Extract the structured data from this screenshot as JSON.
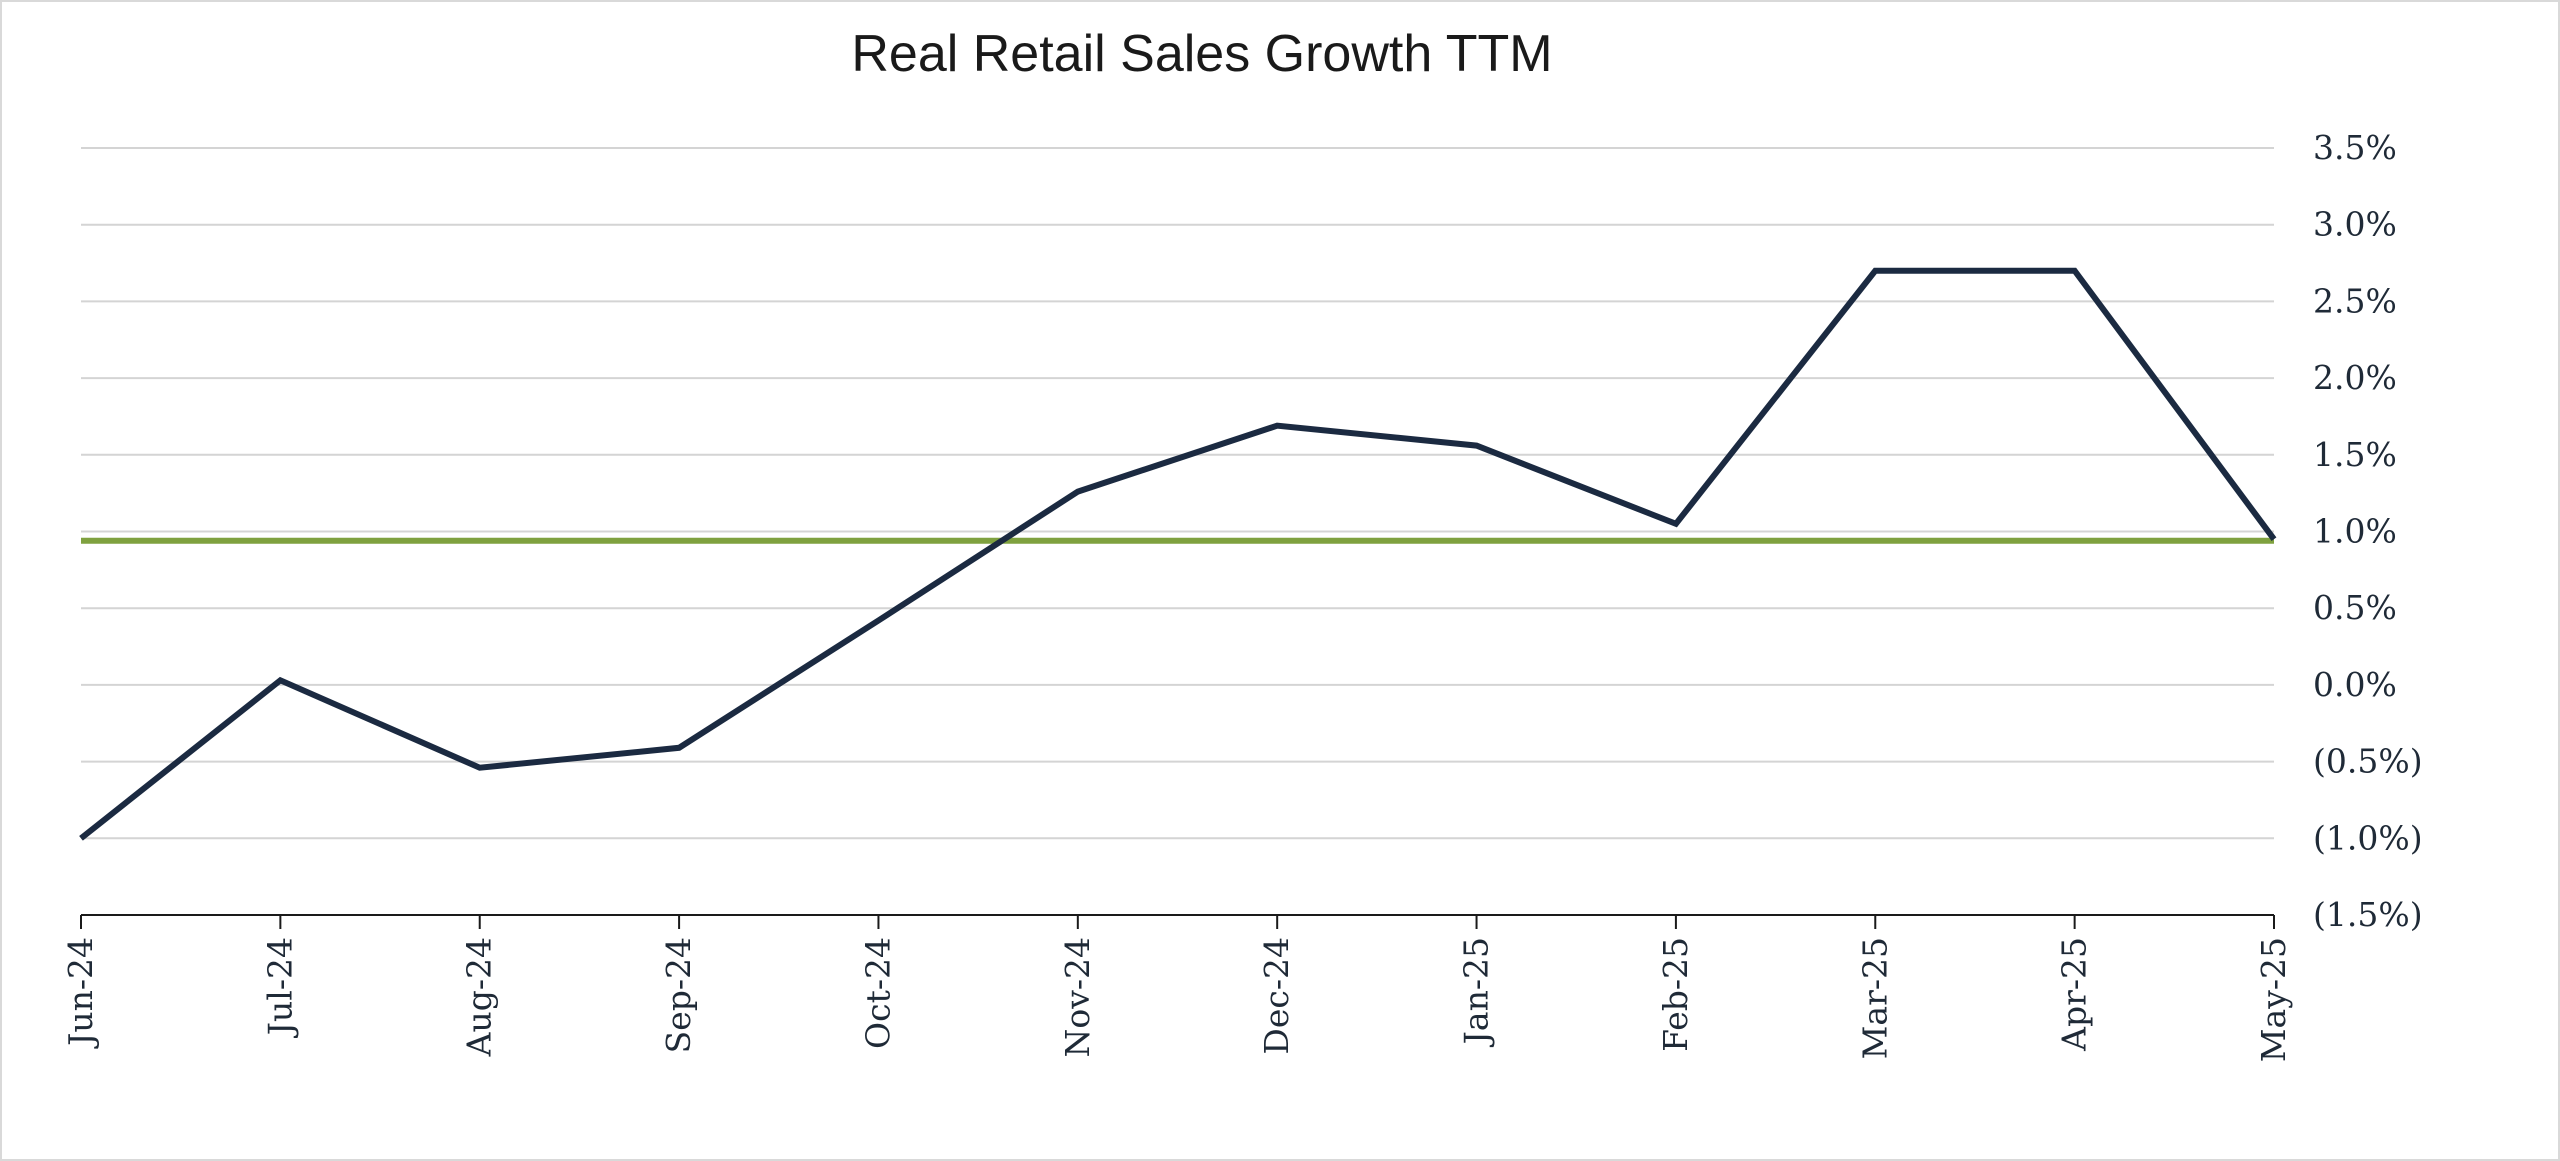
{
  "chart_data": {
    "type": "line",
    "title": "Real Retail Sales Growth TTM",
    "xlabel": "",
    "ylabel": "",
    "categories": [
      "Jun-24",
      "Jul-24",
      "Aug-24",
      "Sep-24",
      "Oct-24",
      "Nov-24",
      "Dec-24",
      "Jan-25",
      "Feb-25",
      "Mar-25",
      "Apr-25",
      "May-25"
    ],
    "series": [
      {
        "values": [
          -1.0,
          0.03,
          -0.54,
          -0.41,
          0.42,
          1.26,
          1.69,
          1.56,
          1.05,
          2.7,
          2.7,
          0.95
        ],
        "color": "#1b2a41"
      }
    ],
    "reference_line": {
      "value": 0.94,
      "color": "#7fa13f"
    },
    "ylim": [
      -1.5,
      3.5
    ],
    "yticks": [
      3.5,
      3.0,
      2.5,
      2.0,
      1.5,
      1.0,
      0.5,
      0.0,
      -0.5,
      -1.0,
      -1.5
    ],
    "ytick_labels": [
      "3.5%",
      "3.0%",
      "2.5%",
      "2.0%",
      "1.5%",
      "1.0%",
      "0.5%",
      "0.0%",
      "(0.5%)",
      "(1.0%)",
      "(1.5%)"
    ],
    "y_axis_side": "right",
    "grid": true,
    "legend": "none"
  }
}
